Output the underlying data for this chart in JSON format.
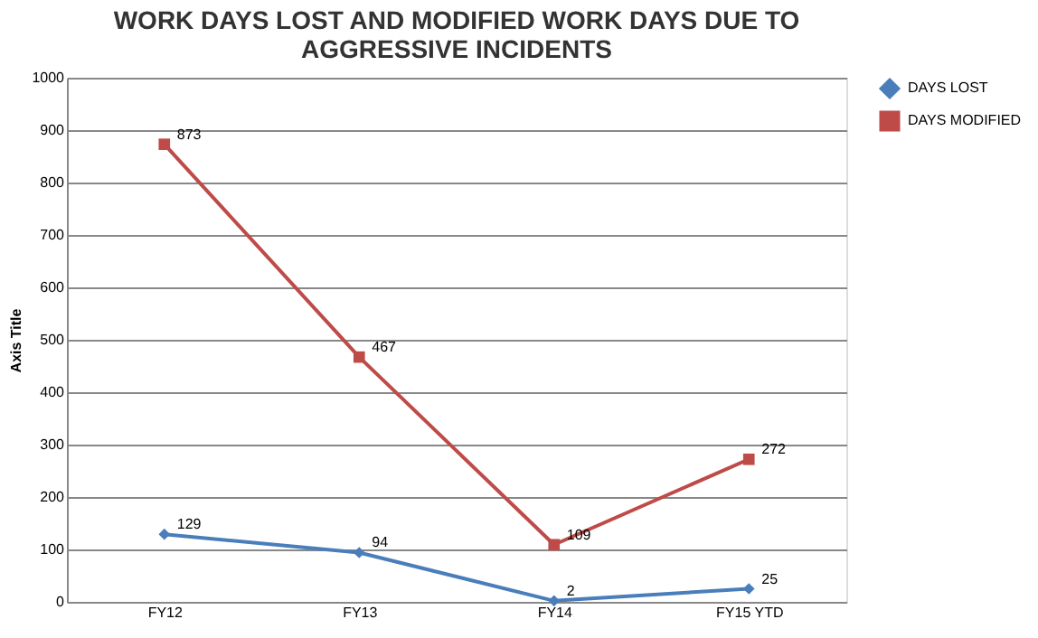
{
  "chart_data": {
    "type": "line",
    "title": "WORK DAYS LOST AND MODIFIED WORK DAYS DUE TO AGGRESSIVE INCIDENTS",
    "ylabel": "Axis Title",
    "categories": [
      "FY12",
      "FY13",
      "FY14",
      "FY15 YTD"
    ],
    "series": [
      {
        "name": "DAYS LOST",
        "color": "#4a7ebb",
        "marker": "diamond",
        "values": [
          129,
          94,
          2,
          25
        ]
      },
      {
        "name": "DAYS MODIFIED",
        "color": "#be4b48",
        "marker": "square",
        "values": [
          873,
          467,
          109,
          272
        ]
      }
    ],
    "ylim": [
      0,
      1000
    ],
    "yticks": [
      0,
      100,
      200,
      300,
      400,
      500,
      600,
      700,
      800,
      900,
      1000
    ],
    "grid": "y",
    "legend": "right",
    "data_labels": true,
    "line_style": "solid"
  }
}
